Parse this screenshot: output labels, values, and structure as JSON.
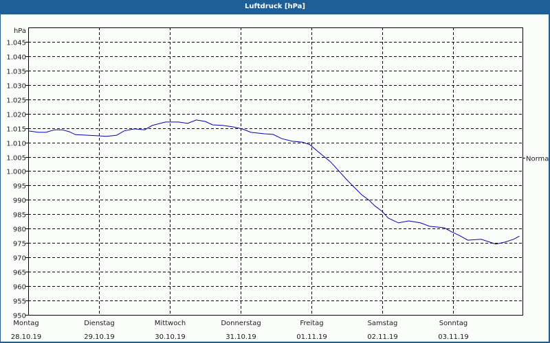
{
  "window": {
    "title": "Luftdruck [hPa]"
  },
  "colors": {
    "header": "#1f5f95",
    "background": "#fbfdfb",
    "line": "#0000b4",
    "grid": "#000000"
  },
  "chart_data": {
    "type": "line",
    "title": "Luftdruck [hPa]",
    "xlabel": "",
    "ylabel": "hPa",
    "ylim": [
      950,
      1048
    ],
    "y_ticks": [
      950,
      955,
      960,
      965,
      970,
      975,
      980,
      985,
      990,
      995,
      1000,
      1005,
      1010,
      1015,
      1020,
      1025,
      1030,
      1035,
      1040,
      1045
    ],
    "y_tick_labels": [
      "950",
      "955",
      "960",
      "965",
      "970",
      "975",
      "980",
      "985",
      "990",
      "995",
      "1.000",
      "1.005",
      "1.010",
      "1.015",
      "1.020",
      "1.025",
      "1.030",
      "1.035",
      "1.040",
      "1.045"
    ],
    "x_unit": "hours since Montag 28.10.19 00:00",
    "xlim": [
      0,
      168
    ],
    "x_ticks": [
      {
        "hour": 0,
        "day": "Montag",
        "date": "28.10.19"
      },
      {
        "hour": 24,
        "day": "Dienstag",
        "date": "29.10.19"
      },
      {
        "hour": 48,
        "day": "Mittwoch",
        "date": "30.10.19"
      },
      {
        "hour": 72,
        "day": "Donnerstag",
        "date": "31.10.19"
      },
      {
        "hour": 96,
        "day": "Freitag",
        "date": "01.11.19"
      },
      {
        "hour": 120,
        "day": "Samstag",
        "date": "02.11.19"
      },
      {
        "hour": 144,
        "day": "Sonntag",
        "date": "03.11.19"
      }
    ],
    "grid": true,
    "reference_line": {
      "label": "Normal",
      "value": 1004.7
    },
    "series": [
      {
        "name": "Luftdruck",
        "x": [
          0,
          3.5,
          6,
          9,
          11.5,
          14,
          16,
          20,
          24,
          26.5,
          30,
          32.5,
          36,
          39.5,
          42,
          46.5,
          51,
          54,
          57,
          60,
          62.5,
          66,
          69.5,
          72.5,
          75.5,
          80,
          83,
          86,
          89.5,
          93,
          95.5,
          98,
          100.5,
          102.5,
          105,
          108,
          110,
          113,
          115.5,
          117.5,
          120,
          122,
          125.5,
          129,
          133,
          136,
          141,
          143.5,
          146,
          149,
          153.5,
          156.5,
          158.5,
          161.5,
          164.5,
          166.5
        ],
        "values": [
          1014.0,
          1013.5,
          1013.5,
          1014.4,
          1014.4,
          1013.7,
          1012.7,
          1012.5,
          1012.3,
          1012.1,
          1012.5,
          1014.0,
          1014.7,
          1014.4,
          1015.9,
          1017.1,
          1017.1,
          1016.6,
          1017.8,
          1017.3,
          1016.1,
          1015.9,
          1015.4,
          1014.7,
          1013.5,
          1013.0,
          1012.8,
          1011.3,
          1010.4,
          1010.1,
          1009.2,
          1007.0,
          1004.9,
          1003.2,
          1000.4,
          997.0,
          994.9,
          991.8,
          989.9,
          987.9,
          986.0,
          983.7,
          982.0,
          982.7,
          982.0,
          980.8,
          980.3,
          978.9,
          977.7,
          976.0,
          976.3,
          975.3,
          974.6,
          975.3,
          976.3,
          977.4
        ]
      }
    ]
  }
}
